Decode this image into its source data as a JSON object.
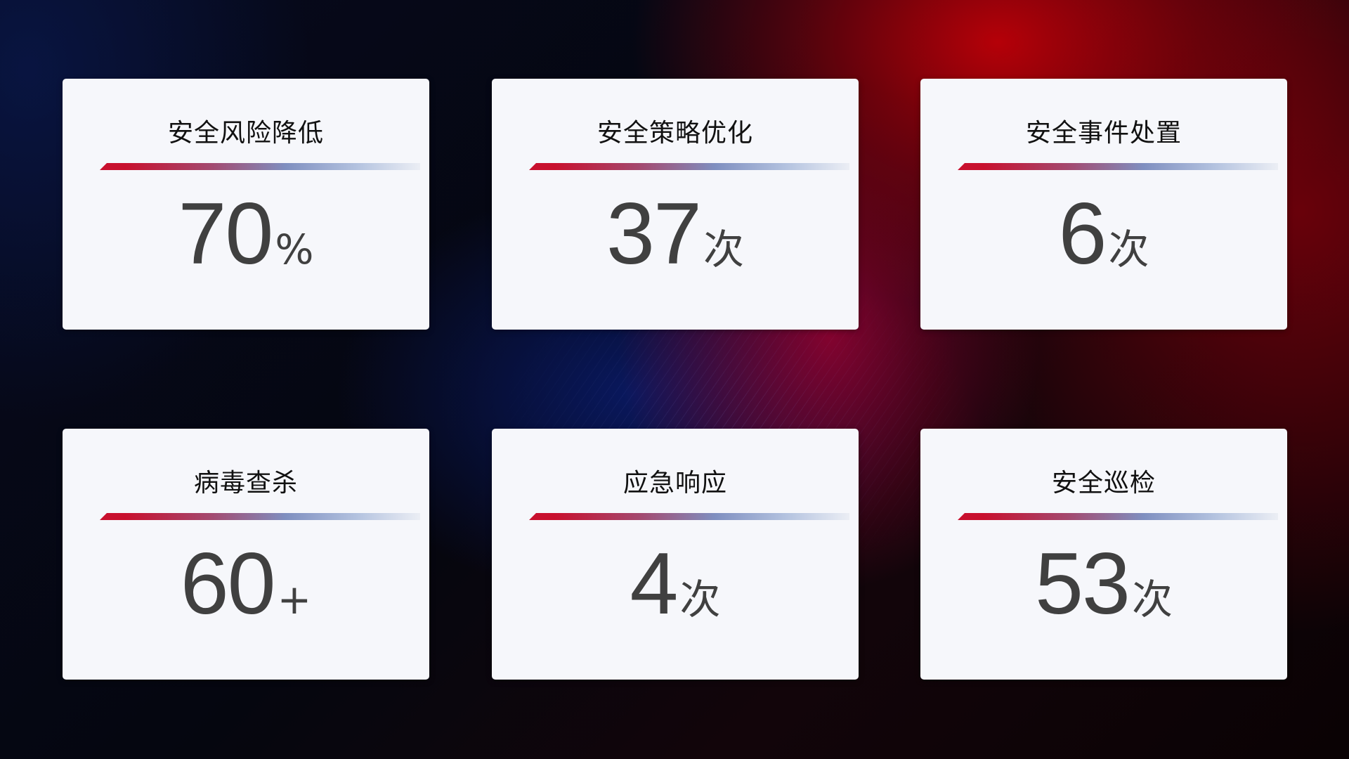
{
  "cards": [
    {
      "title": "安全风险降低",
      "value": "70",
      "unit": "%"
    },
    {
      "title": "安全策略优化",
      "value": "37",
      "unit": "次"
    },
    {
      "title": "安全事件处置",
      "value": "6",
      "unit": "次"
    },
    {
      "title": "病毒查杀",
      "value": "60",
      "unit": "+"
    },
    {
      "title": "应急响应",
      "value": "4",
      "unit": "次"
    },
    {
      "title": "安全巡检",
      "value": "53",
      "unit": "次"
    }
  ],
  "colors": {
    "accent_red": "#c8102e",
    "accent_blue": "#7f8fc0",
    "card_bg": "#f6f7fb",
    "value_text": "#404040"
  }
}
